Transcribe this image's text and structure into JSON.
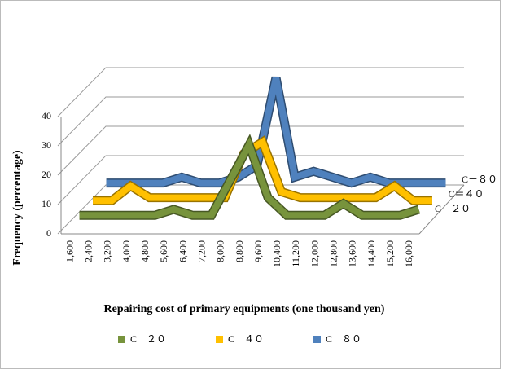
{
  "chart_data": {
    "type": "line3d",
    "x_label": "Repairing cost of primary equipments (one thousand yen)",
    "y_label": "Frequency (percentage)",
    "categories": [
      "1,600",
      "2,400",
      "3,200",
      "4,000",
      "4,800",
      "5,600",
      "6,400",
      "7,200",
      "8,000",
      "8,800",
      "9,600",
      "10,400",
      "11,200",
      "12,000",
      "12,800",
      "13,600",
      "14,400",
      "15,200",
      "16,000"
    ],
    "series": [
      {
        "name": "C　２０",
        "color": "#77933c",
        "values": [
          3,
          3,
          3,
          3,
          3,
          5,
          3,
          3,
          15,
          27,
          9,
          3,
          3,
          3,
          7,
          3,
          3,
          3,
          5
        ]
      },
      {
        "name": "C　４０",
        "color": "#ffc000",
        "values": [
          3,
          3,
          8,
          4,
          4,
          4,
          4,
          4,
          19,
          23,
          6,
          4,
          4,
          4,
          4,
          4,
          8,
          3,
          3
        ]
      },
      {
        "name": "C　８０",
        "color": "#4f81bd",
        "values": [
          4,
          4,
          4,
          4,
          6,
          4,
          4,
          6,
          10,
          40,
          6,
          8,
          6,
          4,
          6,
          4,
          4,
          4,
          4
        ]
      }
    ],
    "depth_labels": [
      "C　２０",
      "C＝４０",
      "C－８０"
    ],
    "ylim": [
      0,
      40
    ],
    "yticks": [
      0,
      10,
      20,
      30,
      40
    ],
    "grid": true
  }
}
